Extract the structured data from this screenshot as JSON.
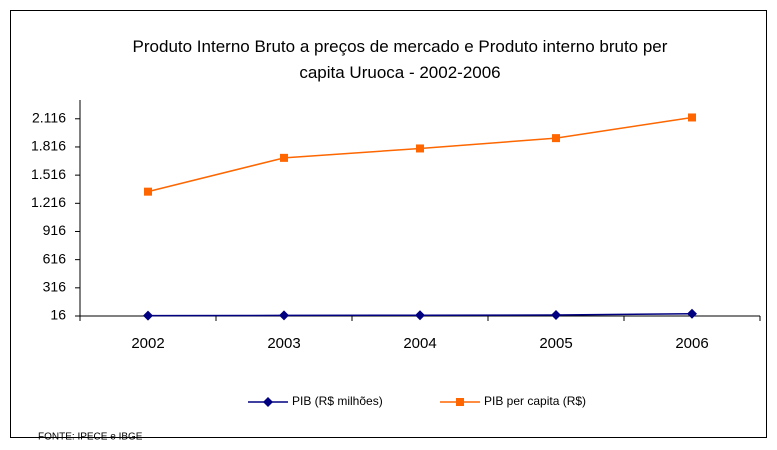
{
  "chart_data": {
    "type": "line",
    "title": "Produto Interno Bruto a preços de mercado e   Produto interno bruto per capita Uruoca - 2002-2006",
    "categories": [
      "2002",
      "2003",
      "2004",
      "2005",
      "2006"
    ],
    "series": [
      {
        "name": "PIB (R$ milhões)",
        "color": "#000080",
        "marker": "diamond",
        "values": [
          20,
          22,
          24,
          26,
          40
        ]
      },
      {
        "name": "PIB per capita (R$)",
        "color": "#ff6600",
        "marker": "square",
        "values": [
          1340,
          1700,
          1800,
          1910,
          2130
        ]
      }
    ],
    "ylim": [
      16,
      2316
    ],
    "yticks": [
      16,
      316,
      616,
      916,
      {
        "value": 1216,
        "label": "1.216"
      },
      {
        "value": 1516,
        "label": "1.516"
      },
      {
        "value": 1816,
        "label": "1.816"
      },
      {
        "value": 2116,
        "label": "2.116"
      }
    ],
    "grid": false,
    "legend": "bottom",
    "source": "FONTE: IPECE e IBGE"
  }
}
